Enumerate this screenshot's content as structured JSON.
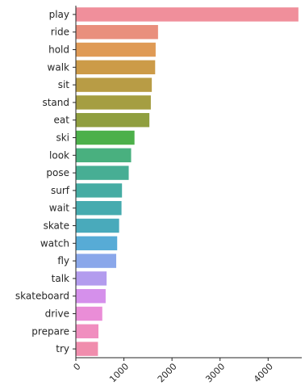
{
  "chart_data": {
    "type": "bar",
    "orientation": "horizontal",
    "title": "",
    "xlabel": "",
    "ylabel": "",
    "xlim": [
      0,
      4700
    ],
    "x_ticks": [
      0,
      1000,
      2000,
      3000,
      4000
    ],
    "x_tick_labels": [
      "0",
      "1000",
      "2000",
      "3000",
      "4000"
    ],
    "grid": false,
    "legend": "none",
    "categories": [
      "play",
      "ride",
      "hold",
      "walk",
      "sit",
      "stand",
      "eat",
      "ski",
      "look",
      "pose",
      "surf",
      "wait",
      "skate",
      "watch",
      "fly",
      "talk",
      "skateboard",
      "drive",
      "prepare",
      "try"
    ],
    "values": [
      4630,
      1710,
      1660,
      1650,
      1580,
      1560,
      1530,
      1220,
      1150,
      1100,
      960,
      950,
      900,
      860,
      840,
      640,
      620,
      550,
      470,
      460
    ],
    "colors": [
      "#f08f9b",
      "#e98f7d",
      "#df9a55",
      "#cc9b48",
      "#b89c45",
      "#a59e42",
      "#909f3f",
      "#4cb04a",
      "#49b07f",
      "#47ae94",
      "#45aca3",
      "#46abaf",
      "#49aabb",
      "#57abd6",
      "#8aa7ea",
      "#b39cee",
      "#d590eb",
      "#ea8dd7",
      "#f08ebf",
      "#f08dad"
    ]
  }
}
